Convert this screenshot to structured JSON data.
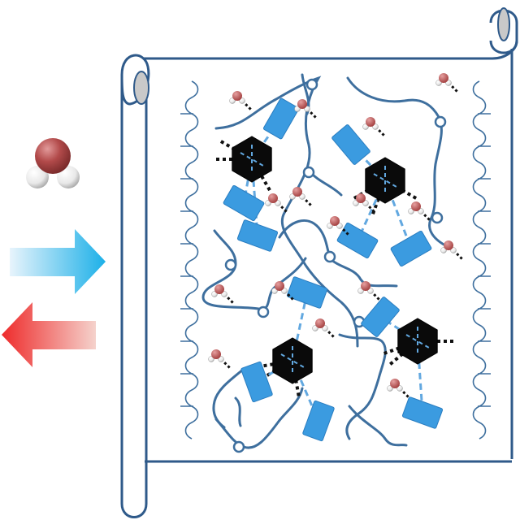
{
  "diagram": {
    "kind": "schematic illustration",
    "icons": {
      "water_molecule": "water-molecule-icon",
      "arrow_in": "arrow-right-icon",
      "arrow_out": "arrow-left-icon",
      "film": "scroll-film-icon",
      "cluster": "hexagon-cluster-icon",
      "h_bond": "hydrogen-bond-dashes-icon"
    },
    "counts": {
      "hexagon_clusters": 4,
      "free_water_molecules": 16
    },
    "colors": {
      "outline": "#2f5a8a",
      "chain": "#3e6f9e",
      "cyan_block": "#3b9be0",
      "cyan_dash": "#62a8e0",
      "hexagon": "#0a0a0a",
      "oxygen": "#b24a4a",
      "hydrogen": "#f2f2f2",
      "arrow_in_start": "#e8f4fc",
      "arrow_in_end": "#1cb0e8",
      "arrow_out_start": "#f5d2cc",
      "arrow_out_end": "#ee2b2b"
    }
  }
}
